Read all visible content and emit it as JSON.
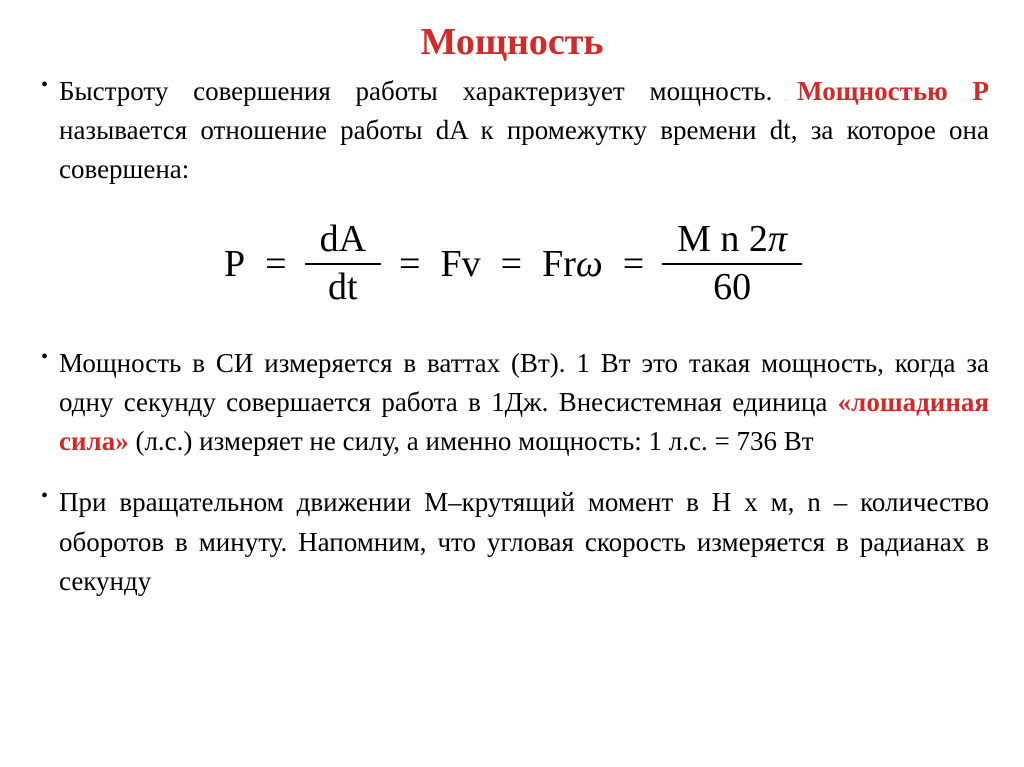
{
  "title": "Мощность",
  "colors": {
    "red": "#d62828",
    "black": "#000000",
    "background": "#ffffff"
  },
  "typography": {
    "title_fontsize": 38,
    "body_fontsize": 27,
    "equation_fontsize": 38,
    "font_family": "Times New Roman"
  },
  "paragraph1": {
    "text_before_red": "Быстроту совершения работы характеризует мощность. ",
    "red_text": "Мощностью P",
    "text_after_red": " называется отношение работы dA к промежутку времени dt, за которое она совершена:"
  },
  "equation": {
    "P": "P",
    "eq": "=",
    "frac1_num": "dA",
    "frac1_den": "dt",
    "fv": "Fv",
    "fr": "Fr",
    "omega": "ω",
    "frac2_num_m": "M n 2",
    "frac2_num_pi": "π",
    "frac2_den": "60"
  },
  "paragraph2": {
    "text_before_red": "Мощность в СИ измеряется в ваттах (Вт). 1 Вт это такая мощность, когда за одну секунду совершается работа в 1Дж. Внесистемная единица ",
    "red_text": "«лошадиная сила»",
    "text_after_red": " (л.с.) измеряет не силу, а именно мощность: 1 л.с. = 736 Вт"
  },
  "paragraph3": {
    "text": "При вращательном движении М–крутящий момент в Н х м, n – количество оборотов в минуту. Напомним, что угловая скорость измеряется в радианах в секунду"
  }
}
